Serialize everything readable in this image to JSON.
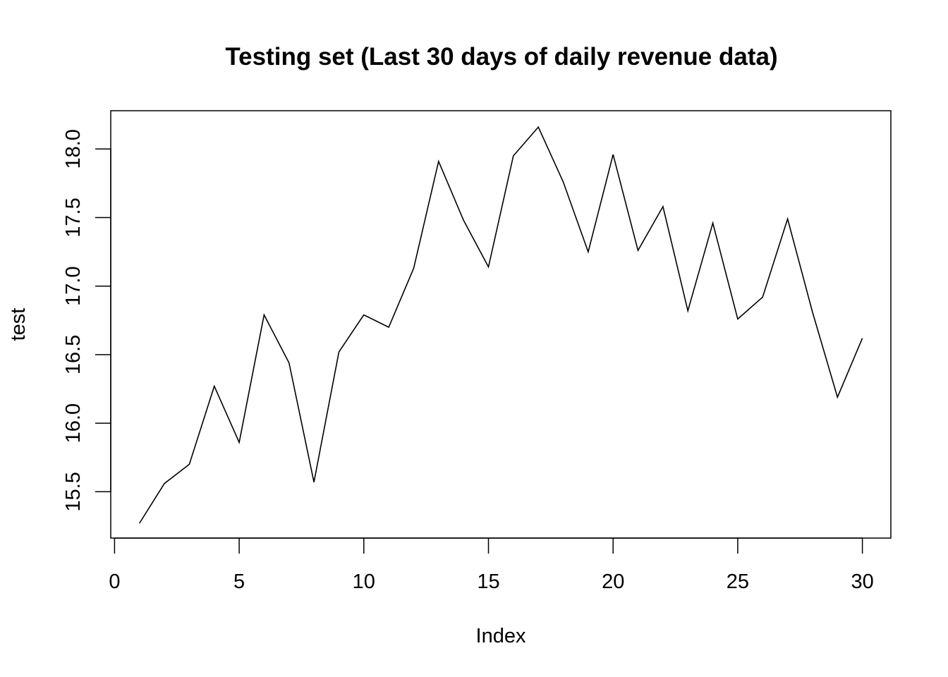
{
  "chart_data": {
    "type": "line",
    "title": "Testing set (Last 30 days of daily revenue data)",
    "xlabel": "Index",
    "ylabel": "test",
    "x": [
      1,
      2,
      3,
      4,
      5,
      6,
      7,
      8,
      9,
      10,
      11,
      12,
      13,
      14,
      15,
      16,
      17,
      18,
      19,
      20,
      21,
      22,
      23,
      24,
      25,
      26,
      27,
      28,
      29,
      30
    ],
    "values": [
      15.27,
      15.56,
      15.7,
      16.27,
      15.86,
      16.79,
      16.44,
      15.57,
      16.52,
      16.79,
      16.7,
      17.13,
      17.91,
      17.48,
      17.14,
      17.95,
      18.16,
      17.76,
      17.25,
      17.96,
      17.26,
      17.58,
      16.82,
      17.46,
      16.76,
      16.92,
      17.49,
      16.81,
      16.19,
      16.62
    ],
    "xlim": [
      0,
      30
    ],
    "ylim": [
      15.2,
      18.3
    ],
    "x_ticks": [
      0,
      5,
      10,
      15,
      20,
      25,
      30
    ],
    "y_ticks": [
      15.5,
      16.0,
      16.5,
      17.0,
      17.5,
      18.0
    ],
    "x_tick_labels": [
      "0",
      "5",
      "10",
      "15",
      "20",
      "25",
      "30"
    ],
    "y_tick_labels": [
      "15.5",
      "16.0",
      "16.5",
      "17.0",
      "17.5",
      "18.0"
    ],
    "grid": false,
    "line_color": "#000000"
  }
}
